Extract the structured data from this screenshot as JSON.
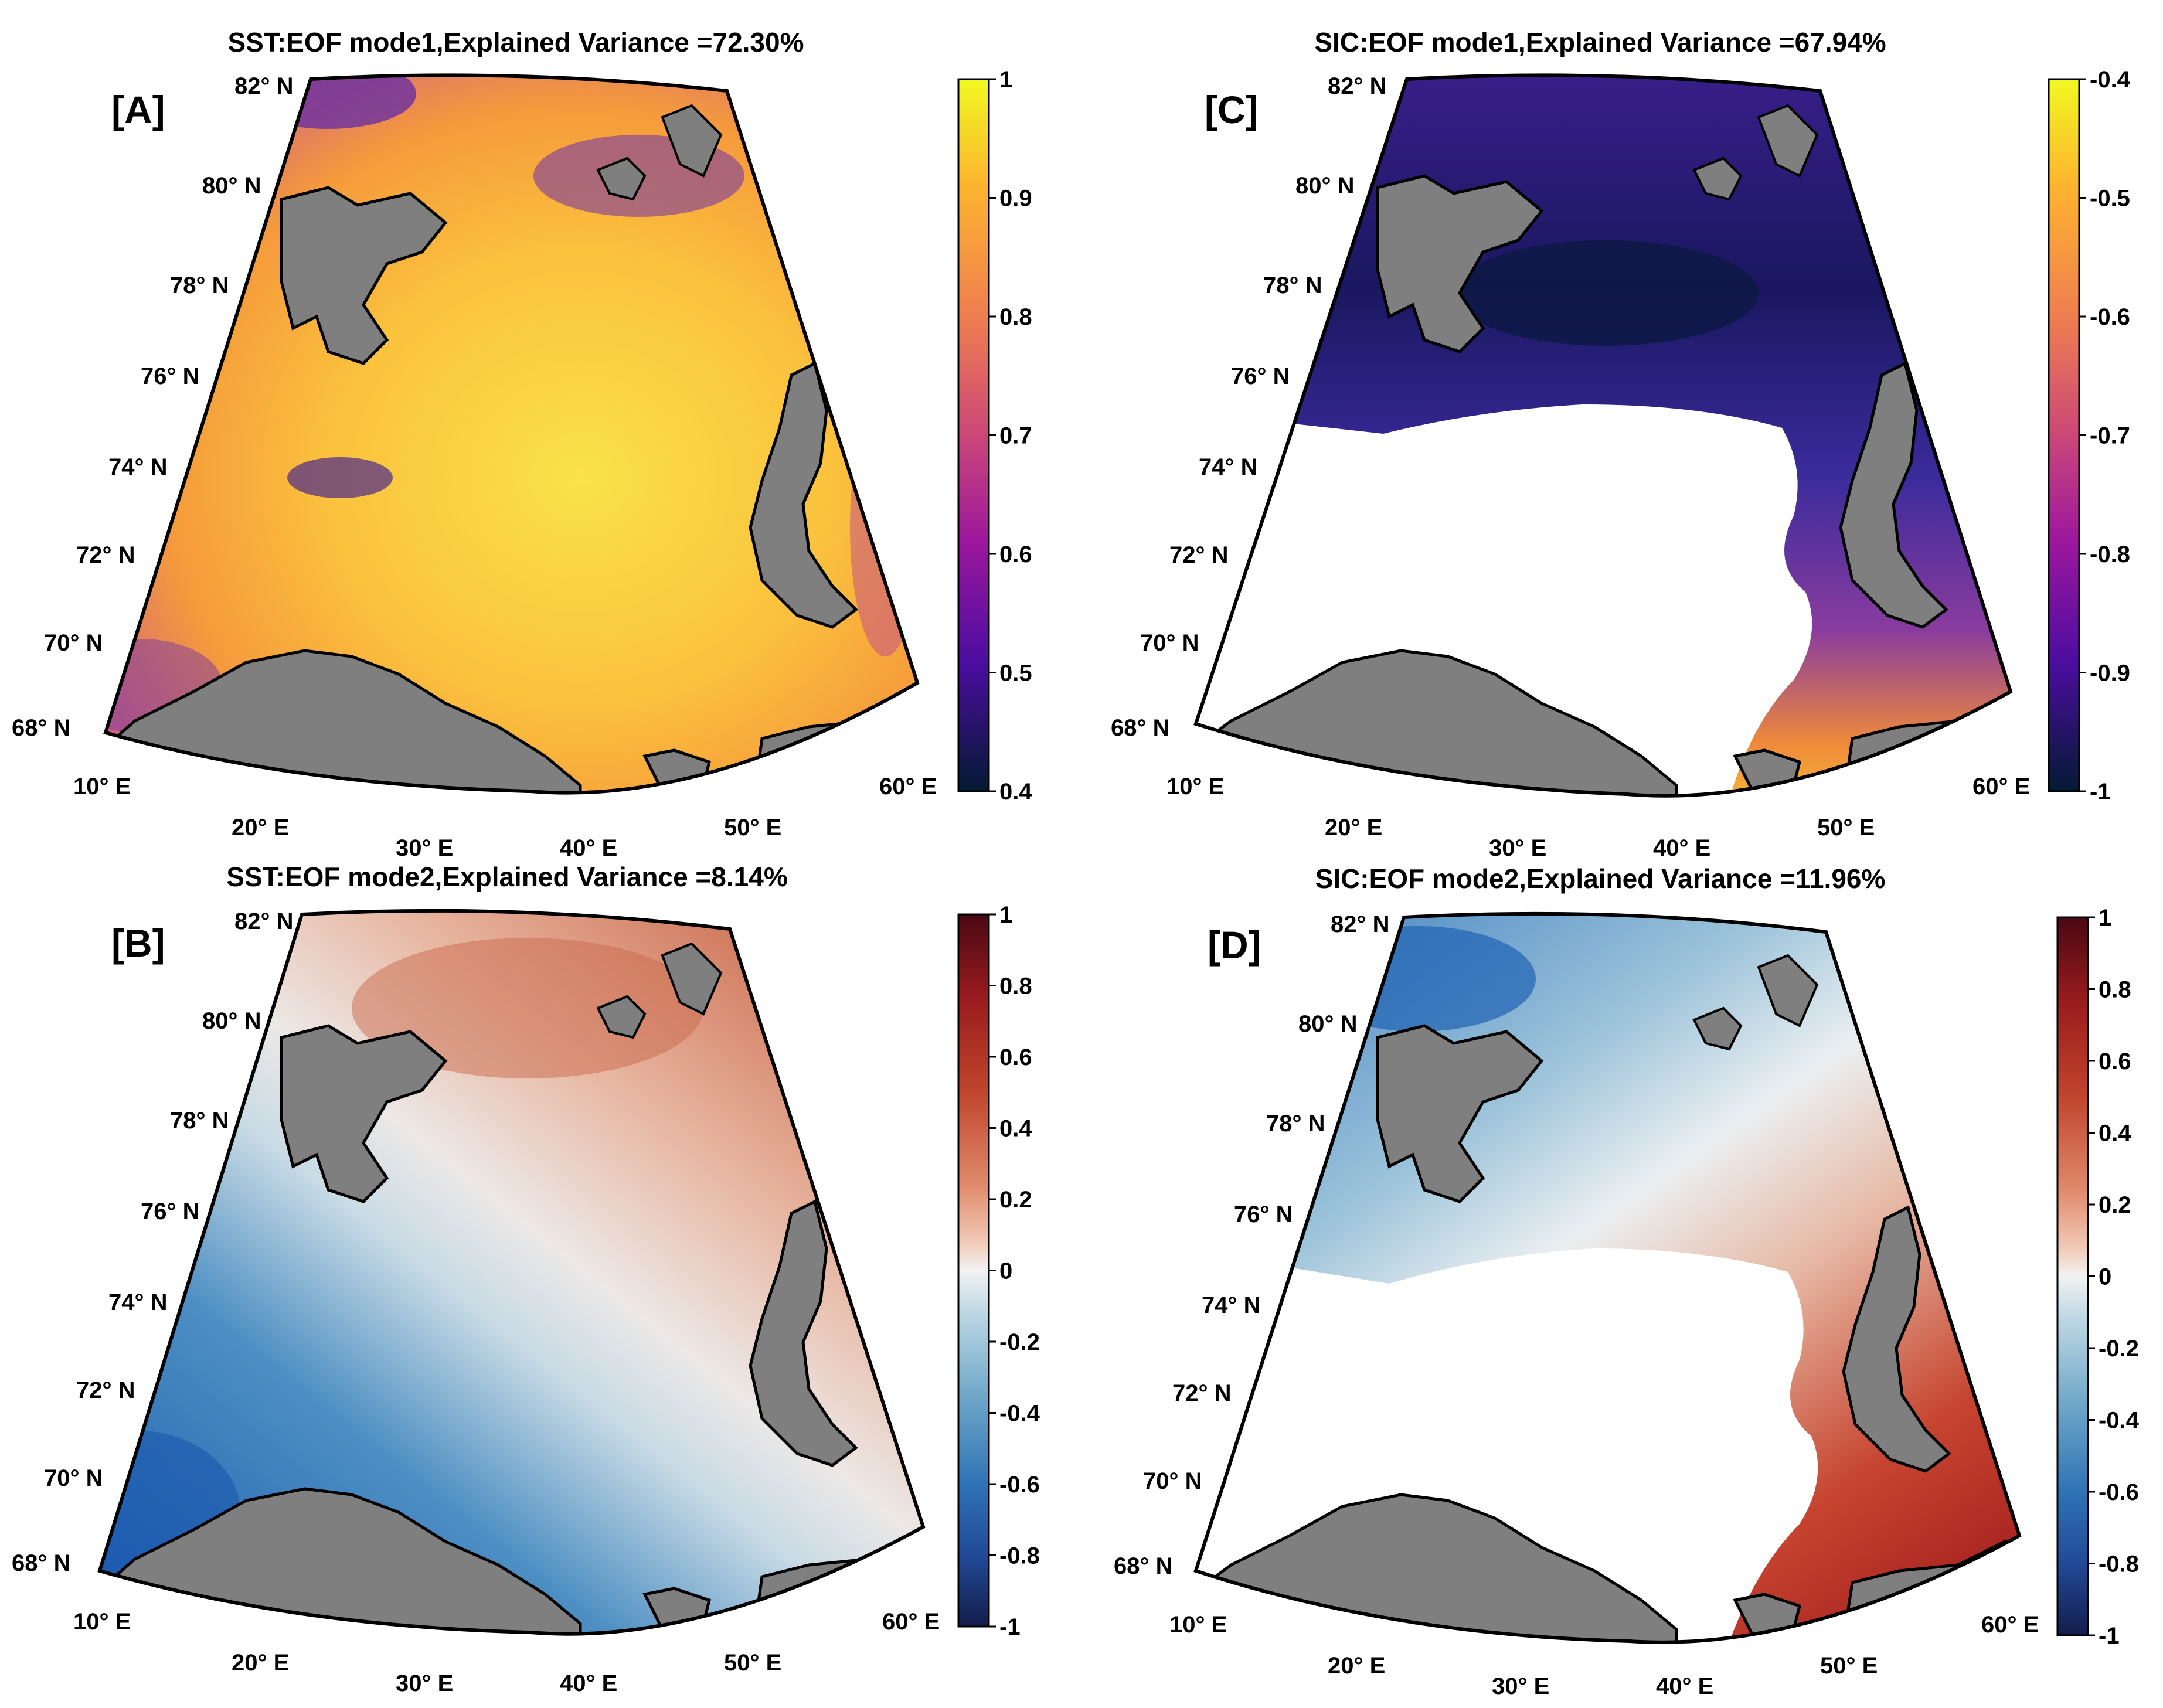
{
  "figure_type": "EOF maps of the Barents Sea region",
  "panels": [
    {
      "id": "A",
      "label": "[A]",
      "title": "SST:EOF mode1,Explained Variance =72.30%",
      "variable": "SST",
      "mode": 1,
      "explained_variance_pct": 72.3,
      "colormap": "plasma-like",
      "colorbar": {
        "min": 0.4,
        "max": 1,
        "ticks": [
          "1",
          "0.9",
          "0.8",
          "0.7",
          "0.6",
          "0.5",
          "0.4"
        ]
      },
      "lat_labels": [
        "82° N",
        "80° N",
        "78° N",
        "76° N",
        "74° N",
        "72° N",
        "70° N",
        "68° N"
      ],
      "lon_labels": [
        "10° E",
        "20° E",
        "30° E",
        "40° E",
        "50° E",
        "60° E"
      ]
    },
    {
      "id": "B",
      "label": "[B]",
      "title": "SST:EOF mode2,Explained Variance =8.14%",
      "variable": "SST",
      "mode": 2,
      "explained_variance_pct": 8.14,
      "colormap": "diverging blue-white-red",
      "colorbar": {
        "min": -1,
        "max": 1,
        "ticks": [
          "1",
          "0.8",
          "0.6",
          "0.4",
          "0.2",
          "0",
          "-0.2",
          "-0.4",
          "-0.6",
          "-0.8",
          "-1"
        ]
      },
      "lat_labels": [
        "82° N",
        "80° N",
        "78° N",
        "76° N",
        "74° N",
        "72° N",
        "70° N",
        "68° N"
      ],
      "lon_labels": [
        "10° E",
        "20° E",
        "30° E",
        "40° E",
        "50° E",
        "60° E"
      ]
    },
    {
      "id": "C",
      "label": "[C]",
      "title": "SIC:EOF mode1,Explained Variance =67.94%",
      "variable": "SIC",
      "mode": 1,
      "explained_variance_pct": 67.94,
      "colormap": "plasma-like",
      "colorbar": {
        "min": -1,
        "max": -0.4,
        "ticks": [
          "-0.4",
          "-0.5",
          "-0.6",
          "-0.7",
          "-0.8",
          "-0.9",
          "-1"
        ]
      },
      "lat_labels": [
        "82° N",
        "80° N",
        "78° N",
        "76° N",
        "74° N",
        "72° N",
        "70° N",
        "68° N"
      ],
      "lon_labels": [
        "10° E",
        "20° E",
        "30° E",
        "40° E",
        "50° E",
        "60° E"
      ]
    },
    {
      "id": "D",
      "label": "[D]",
      "title": "SIC:EOF mode2,Explained Variance =11.96%",
      "variable": "SIC",
      "mode": 2,
      "explained_variance_pct": 11.96,
      "colormap": "diverging blue-white-red",
      "colorbar": {
        "min": -1,
        "max": 1,
        "ticks": [
          "1",
          "0.8",
          "0.6",
          "0.4",
          "0.2",
          "0",
          "-0.2",
          "-0.4",
          "-0.6",
          "-0.8",
          "-1"
        ]
      },
      "lat_labels": [
        "82° N",
        "80° N",
        "78° N",
        "76° N",
        "74° N",
        "72° N",
        "70° N",
        "68° N"
      ],
      "lon_labels": [
        "10° E",
        "20° E",
        "30° E",
        "40° E",
        "50° E",
        "60° E"
      ]
    }
  ],
  "colors": {
    "land": "#7f7f7f",
    "coast": "#000000",
    "plasma": [
      "#0d0887",
      "#5c01a6",
      "#9c179e",
      "#cc4778",
      "#ed7953",
      "#fdb42f",
      "#f0f921"
    ],
    "plasma_bar": [
      "#f0f921",
      "#fdb42f",
      "#ed7953",
      "#cc4778",
      "#9c179e",
      "#5c01a6",
      "#0d0887",
      "#031a33"
    ],
    "diverging_bar": [
      "#4a0814",
      "#9b1c1e",
      "#c0452c",
      "#e08a6b",
      "#f2c9b6",
      "#f2f2f2",
      "#bcd7e3",
      "#6da6c8",
      "#2f73b5",
      "#214a97",
      "#131d4c"
    ]
  }
}
